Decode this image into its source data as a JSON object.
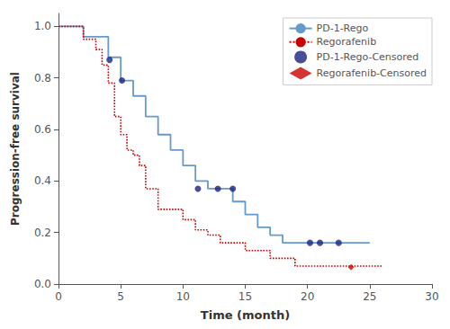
{
  "chart_data": {
    "type": "line",
    "xlabel": "Time (month)",
    "ylabel": "Progression-free survival",
    "xlim": [
      0,
      30
    ],
    "ylim": [
      0.0,
      1.05
    ],
    "xticks": [
      0,
      5,
      10,
      15,
      20,
      25,
      30
    ],
    "yticks": [
      {
        "value": 0.0,
        "label": "0.0"
      },
      0.2,
      0.4,
      0.6,
      0.8,
      {
        "value": 1.0,
        "label": "1.0"
      }
    ],
    "grid": false,
    "legend": "upper right",
    "series": [
      {
        "name": "PD-1-Rego",
        "type": "step",
        "color": "#6699CC",
        "line_style": "solid",
        "x": [
          0,
          1,
          2,
          3,
          4,
          5,
          6,
          7,
          8,
          9,
          10,
          11,
          12,
          13,
          14,
          15,
          16,
          17,
          18,
          19,
          20,
          21,
          22,
          23,
          25
        ],
        "values": [
          1.0,
          1.0,
          0.96,
          0.96,
          0.88,
          0.79,
          0.73,
          0.65,
          0.58,
          0.52,
          0.46,
          0.4,
          0.37,
          0.37,
          0.32,
          0.27,
          0.22,
          0.19,
          0.16,
          0.16,
          0.16,
          0.16,
          0.16,
          0.16,
          0.16
        ]
      },
      {
        "name": "Regorafenib",
        "type": "step",
        "color": "#CC0000",
        "line_style": "dotted",
        "x": [
          0,
          1,
          2,
          3,
          3.5,
          4,
          4.5,
          5,
          5.5,
          6,
          6.5,
          7,
          8,
          9,
          10,
          11,
          12,
          13,
          14,
          15,
          16,
          17,
          18,
          19,
          20,
          21,
          22,
          23,
          25,
          26
        ],
        "values": [
          1.0,
          1.0,
          0.95,
          0.91,
          0.85,
          0.78,
          0.65,
          0.58,
          0.52,
          0.5,
          0.46,
          0.37,
          0.29,
          0.29,
          0.25,
          0.21,
          0.19,
          0.16,
          0.16,
          0.13,
          0.13,
          0.1,
          0.1,
          0.07,
          0.07,
          0.07,
          0.07,
          0.07,
          0.07,
          0.07
        ]
      },
      {
        "name": "PD-1-Rego-Censored",
        "type": "scatter",
        "color": "#1a237e",
        "marker": "circle",
        "x": [
          4.1,
          5.1,
          11.2,
          12.8,
          14.0,
          20.2,
          21.0,
          22.5
        ],
        "values": [
          0.87,
          0.79,
          0.37,
          0.37,
          0.37,
          0.16,
          0.16,
          0.16
        ]
      },
      {
        "name": "Regorafenib-Censored",
        "type": "scatter",
        "color": "#CC0000",
        "marker": "diamond",
        "x": [
          23.5
        ],
        "values": [
          0.065
        ]
      }
    ]
  }
}
